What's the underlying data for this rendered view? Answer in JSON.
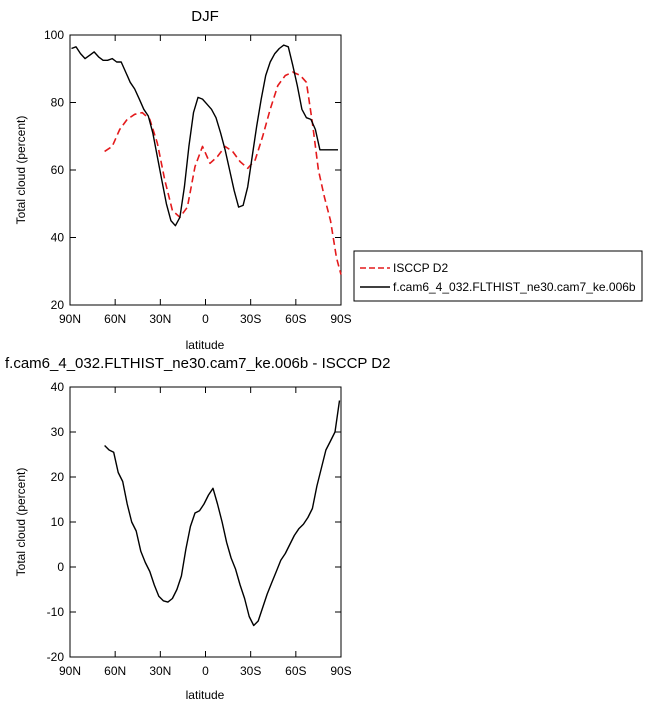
{
  "chart_data": [
    {
      "type": "line",
      "title": "DJF",
      "xlabel": "latitude",
      "ylabel": "Total cloud (percent)",
      "xlim": [
        90,
        -90
      ],
      "ylim": [
        20,
        100
      ],
      "xticks": [
        {
          "value": 90,
          "label": "90N"
        },
        {
          "value": 60,
          "label": "60N"
        },
        {
          "value": 30,
          "label": "30N"
        },
        {
          "value": 0,
          "label": "0"
        },
        {
          "value": -30,
          "label": "30S"
        },
        {
          "value": -60,
          "label": "60S"
        },
        {
          "value": -90,
          "label": "90S"
        }
      ],
      "yticks": [
        20,
        40,
        60,
        80,
        100
      ],
      "legend": "right",
      "series": [
        {
          "name": "ISCCP D2",
          "color": "#e41a1c",
          "style": "dashed",
          "x": [
            67,
            62,
            57,
            52,
            47,
            42,
            37,
            32,
            27,
            22,
            17,
            12,
            7,
            2,
            -3,
            -8,
            -13,
            -18,
            -23,
            -28,
            -33,
            -38,
            -43,
            -48,
            -53,
            -58,
            -63,
            -67,
            -71,
            -75,
            -79,
            -83,
            -87,
            -90
          ],
          "y": [
            65.5,
            67,
            72,
            75,
            76.5,
            77,
            75,
            68,
            57,
            48,
            46,
            49,
            61,
            67,
            62,
            64,
            67,
            65.5,
            62.5,
            60.5,
            63,
            70,
            78,
            85,
            88,
            89,
            88,
            86,
            74,
            60,
            52,
            45,
            34,
            29
          ]
        },
        {
          "name": "f.cam6_4_032.FLTHIST_ne30.cam7_ke.006b",
          "color": "#000000",
          "style": "solid",
          "x": [
            89,
            86,
            83,
            80,
            77,
            74,
            71,
            68,
            65,
            62,
            59,
            56,
            53,
            50,
            47,
            44,
            41,
            38,
            35,
            32,
            29,
            26,
            23,
            20,
            17,
            14,
            11,
            8,
            5,
            2,
            -1,
            -4,
            -7,
            -10,
            -13,
            -16,
            -19,
            -22,
            -25,
            -28,
            -31,
            -34,
            -37,
            -40,
            -43,
            -46,
            -49,
            -52,
            -55,
            -58,
            -61,
            -64,
            -67,
            -70,
            -73,
            -76,
            -79,
            -82,
            -85,
            -88
          ],
          "y": [
            96,
            96.5,
            94.5,
            93,
            94,
            95,
            93.5,
            92.5,
            92.5,
            93,
            92,
            92,
            89,
            86,
            84,
            81,
            78,
            76,
            71,
            64,
            57,
            50,
            45,
            43.5,
            46,
            55,
            67,
            77,
            81.5,
            81,
            79.5,
            78,
            75.5,
            71,
            66,
            60,
            54,
            49,
            49.5,
            55,
            64,
            73,
            81,
            88,
            92,
            94.5,
            96,
            97,
            96.5,
            91,
            85,
            78,
            75.5,
            75,
            72,
            66,
            66,
            66,
            66,
            66
          ]
        }
      ]
    },
    {
      "type": "line",
      "title": "f.cam6_4_032.FLTHIST_ne30.cam7_ke.006b - ISCCP D2",
      "xlabel": "latitude",
      "ylabel": "Total cloud (percent)",
      "xlim": [
        90,
        -90
      ],
      "ylim": [
        -20,
        40
      ],
      "xticks": [
        {
          "value": 90,
          "label": "90N"
        },
        {
          "value": 60,
          "label": "60N"
        },
        {
          "value": 30,
          "label": "30N"
        },
        {
          "value": 0,
          "label": "0"
        },
        {
          "value": -30,
          "label": "30S"
        },
        {
          "value": -60,
          "label": "60S"
        },
        {
          "value": -90,
          "label": "90S"
        }
      ],
      "yticks": [
        -20,
        -10,
        0,
        10,
        20,
        30,
        40
      ],
      "series": [
        {
          "color": "#000000",
          "style": "solid",
          "x": [
            67,
            64,
            61,
            58,
            55,
            52,
            49,
            46,
            43,
            40,
            37,
            34,
            31,
            28,
            25,
            22,
            19,
            16,
            13,
            10,
            7,
            4,
            1,
            -2,
            -5,
            -8,
            -11,
            -14,
            -17,
            -20,
            -23,
            -26,
            -29,
            -32,
            -35,
            -38,
            -41,
            -44,
            -47,
            -50,
            -53,
            -56,
            -59,
            -62,
            -65,
            -68,
            -71,
            -74,
            -77,
            -80,
            -83,
            -86,
            -89
          ],
          "y": [
            27,
            26,
            25.5,
            21,
            19,
            14,
            10,
            8,
            3.5,
            1,
            -1,
            -4,
            -6.5,
            -7.5,
            -7.8,
            -7,
            -5,
            -2,
            4,
            9,
            12,
            12.5,
            14,
            16,
            17.5,
            14,
            10,
            5.5,
            2,
            -0.5,
            -4,
            -7,
            -11,
            -13,
            -12,
            -9,
            -6,
            -3.5,
            -1,
            1.5,
            3,
            5,
            7,
            8.5,
            9.5,
            11,
            13,
            18,
            22,
            26,
            28,
            30,
            37
          ]
        }
      ]
    }
  ]
}
